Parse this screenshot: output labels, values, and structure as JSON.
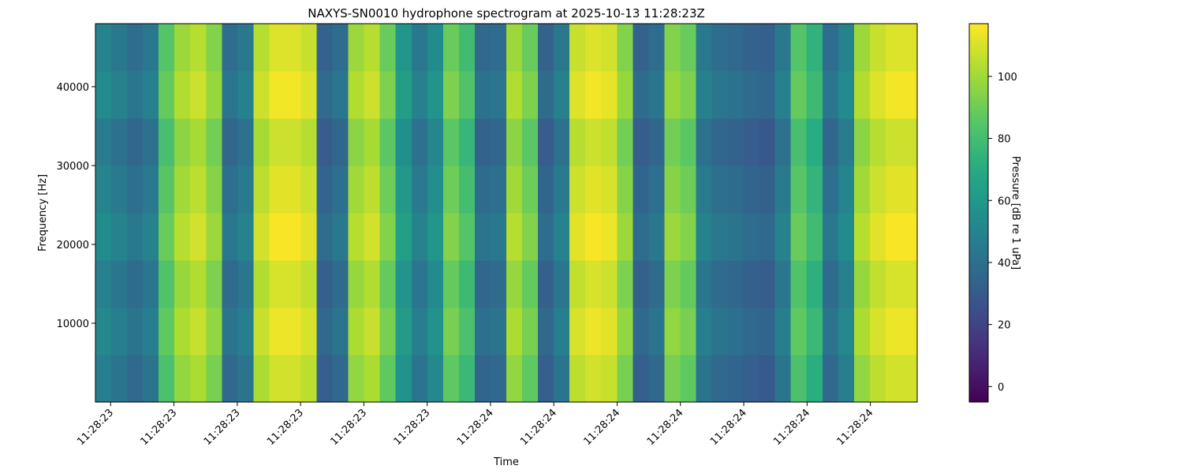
{
  "chart_data": {
    "type": "heatmap",
    "title": "NAXYS-SN0010 hydrophone spectrogram at 2025-10-13 11:28:23Z",
    "xlabel": "Time",
    "ylabel": "Frequency [Hz]",
    "colorbar_label": "Pressure [dB re 1 uPa]",
    "colormap": "viridis",
    "xlim": [
      23.376,
      24.674
    ],
    "xticks": [
      {
        "value": 23.4,
        "label": "11:28:23"
      },
      {
        "value": 23.5,
        "label": "11:28:23"
      },
      {
        "value": 23.6,
        "label": "11:28:23"
      },
      {
        "value": 23.7,
        "label": "11:28:23"
      },
      {
        "value": 23.8,
        "label": "11:28:23"
      },
      {
        "value": 23.9,
        "label": "11:28:23"
      },
      {
        "value": 24.0,
        "label": "11:28:24"
      },
      {
        "value": 24.1,
        "label": "11:28:24"
      },
      {
        "value": 24.2,
        "label": "11:28:24"
      },
      {
        "value": 24.3,
        "label": "11:28:24"
      },
      {
        "value": 24.4,
        "label": "11:28:24"
      },
      {
        "value": 24.5,
        "label": "11:28:24"
      },
      {
        "value": 24.6,
        "label": "11:28:24"
      }
    ],
    "ylim": [
      0,
      48000
    ],
    "yticks": [
      10000,
      20000,
      30000,
      40000
    ],
    "clim": [
      -5,
      117
    ],
    "cticks": [
      0,
      20,
      40,
      60,
      80,
      100
    ],
    "z": [
      [
        47,
        42,
        37,
        42,
        82,
        97,
        102,
        92,
        37,
        42,
        102,
        109,
        109,
        105,
        32,
        37,
        97,
        102,
        87,
        57,
        42,
        52,
        87,
        77,
        35,
        37,
        97,
        87,
        32,
        42,
        105,
        109,
        107,
        92,
        32,
        37,
        92,
        87,
        42,
        37,
        35,
        32,
        30,
        42,
        82,
        72,
        37,
        47,
        97,
        105,
        109,
        109
      ],
      [
        52,
        47,
        42,
        47,
        87,
        102,
        107,
        97,
        42,
        47,
        107,
        114,
        114,
        110,
        37,
        42,
        102,
        107,
        92,
        62,
        47,
        57,
        92,
        82,
        40,
        42,
        102,
        92,
        37,
        47,
        110,
        114,
        112,
        97,
        37,
        42,
        97,
        92,
        47,
        42,
        40,
        37,
        35,
        47,
        87,
        77,
        42,
        52,
        102,
        110,
        114,
        114
      ],
      [
        48,
        43,
        38,
        43,
        83,
        98,
        103,
        93,
        38,
        43,
        103,
        110,
        110,
        106,
        33,
        38,
        98,
        103,
        88,
        58,
        43,
        53,
        88,
        78,
        36,
        38,
        98,
        88,
        33,
        43,
        106,
        110,
        108,
        93,
        33,
        38,
        93,
        88,
        43,
        38,
        36,
        33,
        31,
        43,
        83,
        73,
        38,
        48,
        98,
        106,
        110,
        110
      ],
      [
        54,
        49,
        44,
        49,
        89,
        104,
        109,
        99,
        44,
        49,
        109,
        116,
        116,
        112,
        39,
        44,
        104,
        109,
        94,
        64,
        49,
        59,
        94,
        84,
        42,
        44,
        104,
        94,
        39,
        49,
        112,
        116,
        114,
        99,
        39,
        44,
        99,
        94,
        49,
        44,
        42,
        39,
        37,
        49,
        89,
        79,
        44,
        54,
        104,
        112,
        116,
        116
      ],
      [
        50,
        45,
        40,
        45,
        85,
        100,
        105,
        95,
        40,
        45,
        105,
        112,
        112,
        108,
        35,
        40,
        100,
        105,
        90,
        60,
        45,
        55,
        90,
        80,
        38,
        40,
        100,
        90,
        35,
        45,
        108,
        112,
        110,
        95,
        35,
        40,
        95,
        90,
        45,
        40,
        38,
        35,
        33,
        45,
        85,
        75,
        40,
        50,
        100,
        108,
        112,
        112
      ],
      [
        46,
        41,
        36,
        41,
        81,
        96,
        101,
        91,
        36,
        41,
        101,
        108,
        108,
        104,
        31,
        36,
        96,
        101,
        86,
        56,
        41,
        51,
        86,
        76,
        34,
        36,
        96,
        86,
        31,
        41,
        104,
        108,
        106,
        91,
        31,
        36,
        91,
        86,
        41,
        36,
        34,
        31,
        29,
        41,
        81,
        71,
        36,
        46,
        96,
        104,
        108,
        108
      ],
      [
        53,
        48,
        43,
        48,
        88,
        103,
        108,
        98,
        43,
        48,
        108,
        115,
        115,
        111,
        38,
        43,
        103,
        108,
        93,
        63,
        48,
        58,
        93,
        83,
        41,
        43,
        103,
        93,
        38,
        48,
        111,
        115,
        113,
        98,
        38,
        43,
        98,
        93,
        48,
        43,
        41,
        38,
        36,
        48,
        88,
        78,
        43,
        53,
        103,
        111,
        115,
        115
      ],
      [
        49,
        44,
        39,
        44,
        84,
        99,
        104,
        94,
        39,
        44,
        104,
        111,
        111,
        107,
        34,
        39,
        99,
        104,
        89,
        59,
        44,
        54,
        89,
        79,
        37,
        39,
        99,
        89,
        34,
        44,
        107,
        111,
        109,
        94,
        34,
        39,
        94,
        89,
        44,
        39,
        37,
        34,
        32,
        44,
        84,
        74,
        39,
        49,
        99,
        107,
        111,
        111
      ]
    ]
  }
}
